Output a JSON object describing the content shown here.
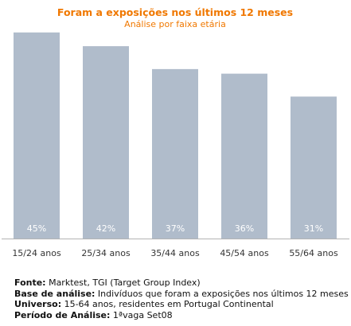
{
  "chart_data": {
    "type": "bar",
    "title": "Foram a exposições nos últimos 12 meses",
    "subtitle": "Análise por faixa etária",
    "categories": [
      "15/24 anos",
      "25/34 anos",
      "35/44 anos",
      "45/54 anos",
      "55/64 anos"
    ],
    "values": [
      45,
      42,
      37,
      36,
      31
    ],
    "value_labels": [
      "45%",
      "42%",
      "37%",
      "36%",
      "31%"
    ],
    "unit": "%",
    "ylim": [
      0,
      50
    ],
    "grid": false,
    "legend": "none",
    "colors": {
      "bar": "#b0bccb",
      "title": "#f07800",
      "value_label": "#ffffff",
      "axis": "#b3b3b3"
    }
  },
  "notes": [
    {
      "key": "Fonte:",
      "value": " Marktest, TGI (Target Group Index)"
    },
    {
      "key": "Base de análise:",
      "value": " Indivíduos que foram a exposições nos últimos 12 meses"
    },
    {
      "key": "Universo:",
      "value": " 15-64 anos, residentes em Portugal Continental"
    },
    {
      "key": "Período de Análise:",
      "value": " 1ªvaga Set08"
    }
  ]
}
